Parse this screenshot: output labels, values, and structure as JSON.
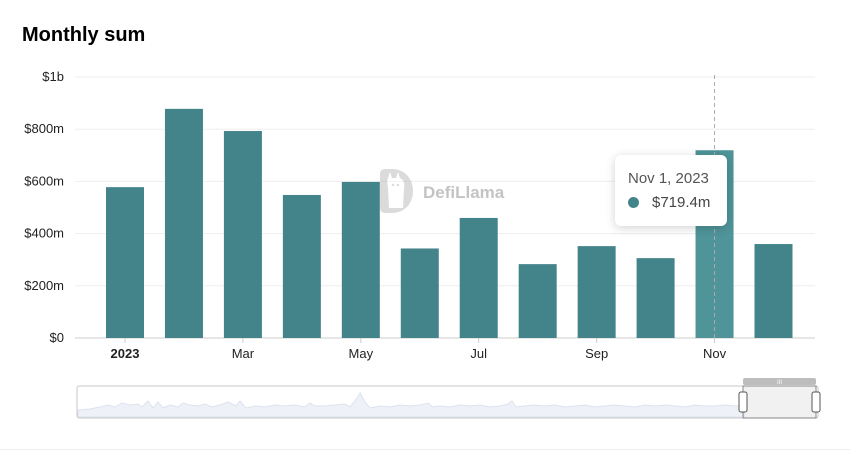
{
  "title": "Monthly sum",
  "watermark": "DefiLlama",
  "colors": {
    "bar": "#43848a",
    "bar_hover": "#4e9499",
    "grid": "#eeeeee",
    "axis": "#cccccc"
  },
  "tooltip": {
    "date": "Nov 1, 2023",
    "value": "$719.4m"
  },
  "chart_data": {
    "type": "bar",
    "categories": [
      "Jan 2023",
      "Feb 2023",
      "Mar 2023",
      "Apr 2023",
      "May 2023",
      "Jun 2023",
      "Jul 2023",
      "Aug 2023",
      "Sep 2023",
      "Oct 2023",
      "Nov 2023",
      "Dec 2023"
    ],
    "values": [
      578,
      878,
      793,
      548,
      598,
      343,
      460,
      283,
      352,
      306,
      719.4,
      360
    ],
    "x_tick_labels": [
      "2023",
      "Mar",
      "May",
      "Jul",
      "Sep",
      "Nov"
    ],
    "y_tick_labels": [
      "$0",
      "$200m",
      "$400m",
      "$600m",
      "$800m",
      "$1b"
    ],
    "ylim": [
      0,
      1000
    ],
    "y_unit": "$m",
    "highlighted_category": "Nov 2023",
    "grid": true
  },
  "range_slider": {
    "handle_label": "III"
  }
}
